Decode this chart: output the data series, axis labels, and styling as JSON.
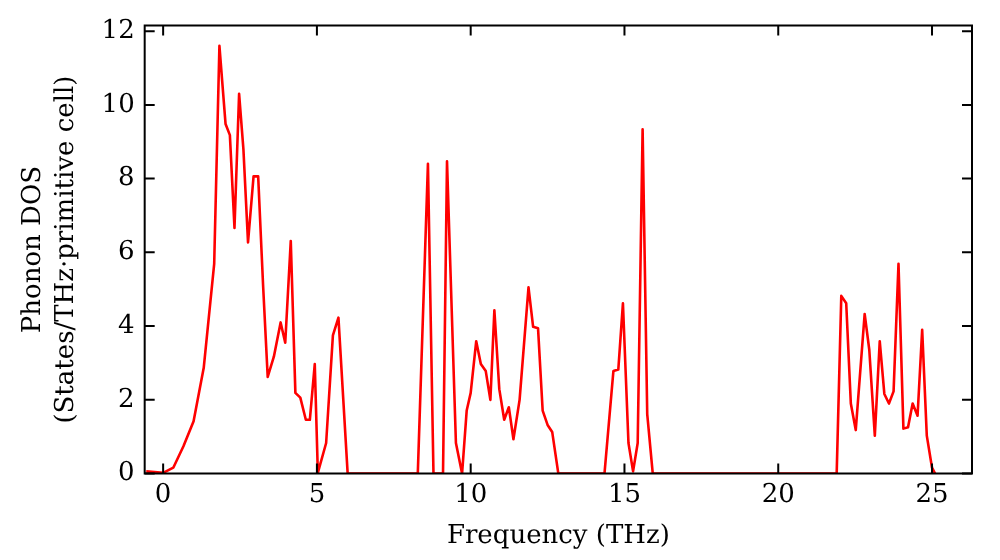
{
  "chart_data": {
    "type": "line",
    "xlabel": "Frequency (THz)",
    "ylabel": "Phonon DOS\n(States/THz·primitive cell)",
    "xlim": [
      -0.6,
      26.3
    ],
    "ylim": [
      0,
      12.15
    ],
    "xticks": [
      0,
      5,
      10,
      15,
      20,
      25
    ],
    "yticks": [
      0,
      2,
      4,
      6,
      8,
      10,
      12
    ],
    "grid": false,
    "legend": false,
    "marker": "none",
    "line_style": "solid",
    "series": [
      {
        "color": "#ff0000",
        "x": [
          -0.55,
          0,
          0.33,
          0.66,
          0.99,
          1.32,
          1.66,
          1.83,
          2.03,
          2.17,
          2.32,
          2.47,
          2.61,
          2.76,
          2.94,
          3.09,
          3.25,
          3.4,
          3.6,
          3.82,
          3.97,
          4.15,
          4.3,
          4.46,
          4.64,
          4.77,
          4.93,
          5.03,
          5.3,
          5.52,
          5.7,
          6.0,
          8.28,
          8.61,
          8.79,
          9.1,
          9.23,
          9.52,
          9.72,
          9.87,
          10.0,
          10.18,
          10.33,
          10.49,
          10.64,
          10.77,
          10.93,
          11.09,
          11.24,
          11.39,
          11.59,
          11.88,
          12.03,
          12.19,
          12.34,
          12.5,
          12.65,
          12.85,
          14.35,
          14.64,
          14.8,
          14.95,
          15.13,
          15.28,
          15.43,
          15.59,
          15.74,
          15.92,
          21.9,
          22.05,
          22.21,
          22.36,
          22.52,
          22.81,
          22.96,
          23.14,
          23.3,
          23.45,
          23.6,
          23.75,
          23.91,
          24.07,
          24.22,
          24.37,
          24.53,
          24.68,
          24.83,
          25.0,
          25.1
        ],
        "values": [
          0.06,
          0.02,
          0.16,
          0.74,
          1.42,
          2.87,
          5.69,
          11.6,
          9.48,
          9.18,
          6.66,
          10.3,
          8.8,
          6.27,
          8.06,
          8.06,
          5.1,
          2.62,
          3.17,
          4.1,
          3.55,
          6.31,
          2.19,
          2.06,
          1.46,
          1.46,
          2.97,
          0.02,
          0.83,
          3.75,
          4.23,
          0,
          0,
          8.4,
          0,
          0,
          8.47,
          0.83,
          0,
          1.71,
          2.19,
          3.59,
          2.97,
          2.78,
          2.0,
          4.43,
          2.29,
          1.46,
          1.8,
          0.93,
          2.0,
          5.05,
          3.98,
          3.94,
          1.71,
          1.32,
          1.13,
          0,
          0,
          2.78,
          2.82,
          4.62,
          0.83,
          0.06,
          0.83,
          9.34,
          1.61,
          0,
          0,
          4.82,
          4.62,
          1.9,
          1.18,
          4.33,
          3.36,
          1.03,
          3.59,
          2.16,
          1.9,
          2.23,
          5.69,
          1.22,
          1.26,
          1.9,
          1.57,
          3.9,
          1.03,
          0.16,
          0
        ]
      }
    ]
  }
}
